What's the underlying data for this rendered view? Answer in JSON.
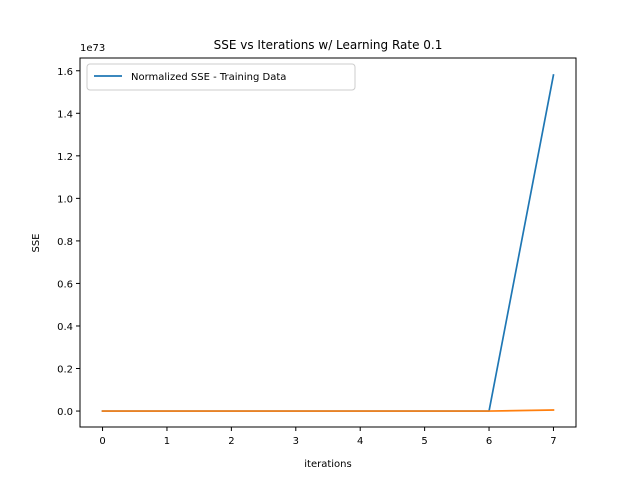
{
  "chart_data": {
    "type": "line",
    "title": "SSE vs Iterations w/ Learning Rate 0.1",
    "xlabel": "iterations",
    "ylabel": "SSE",
    "y_offset_label": "1e73",
    "y_scale_factor": 1e+73,
    "xlim": [
      -0.35,
      7.35
    ],
    "ylim": [
      -7.5e+71,
      1.66e+73
    ],
    "x_ticks": [
      0,
      1,
      2,
      3,
      4,
      5,
      6,
      7
    ],
    "y_ticks": [
      0,
      2e+72,
      4e+72,
      6e+72,
      8e+72,
      1e+73,
      1.2e+73,
      1.4e+73,
      1.6e+73
    ],
    "y_tick_labels": [
      "0.0",
      "0.2",
      "0.4",
      "0.6",
      "0.8",
      "1.0",
      "1.2",
      "1.4",
      "1.6"
    ],
    "grid": false,
    "legend_position": "top-left",
    "series": [
      {
        "name": "Normalized SSE - Training Data",
        "color": "#1f77b4",
        "x": [
          0,
          1,
          2,
          3,
          4,
          5,
          6,
          7
        ],
        "y": [
          0,
          0,
          0,
          0,
          0,
          0,
          0,
          1.58e+73
        ]
      },
      {
        "color": "#ff7f0e",
        "x": [
          0,
          1,
          2,
          3,
          4,
          5,
          6,
          7
        ],
        "y": [
          0,
          0,
          0,
          0,
          0,
          0,
          0,
          5e+70
        ]
      }
    ]
  }
}
